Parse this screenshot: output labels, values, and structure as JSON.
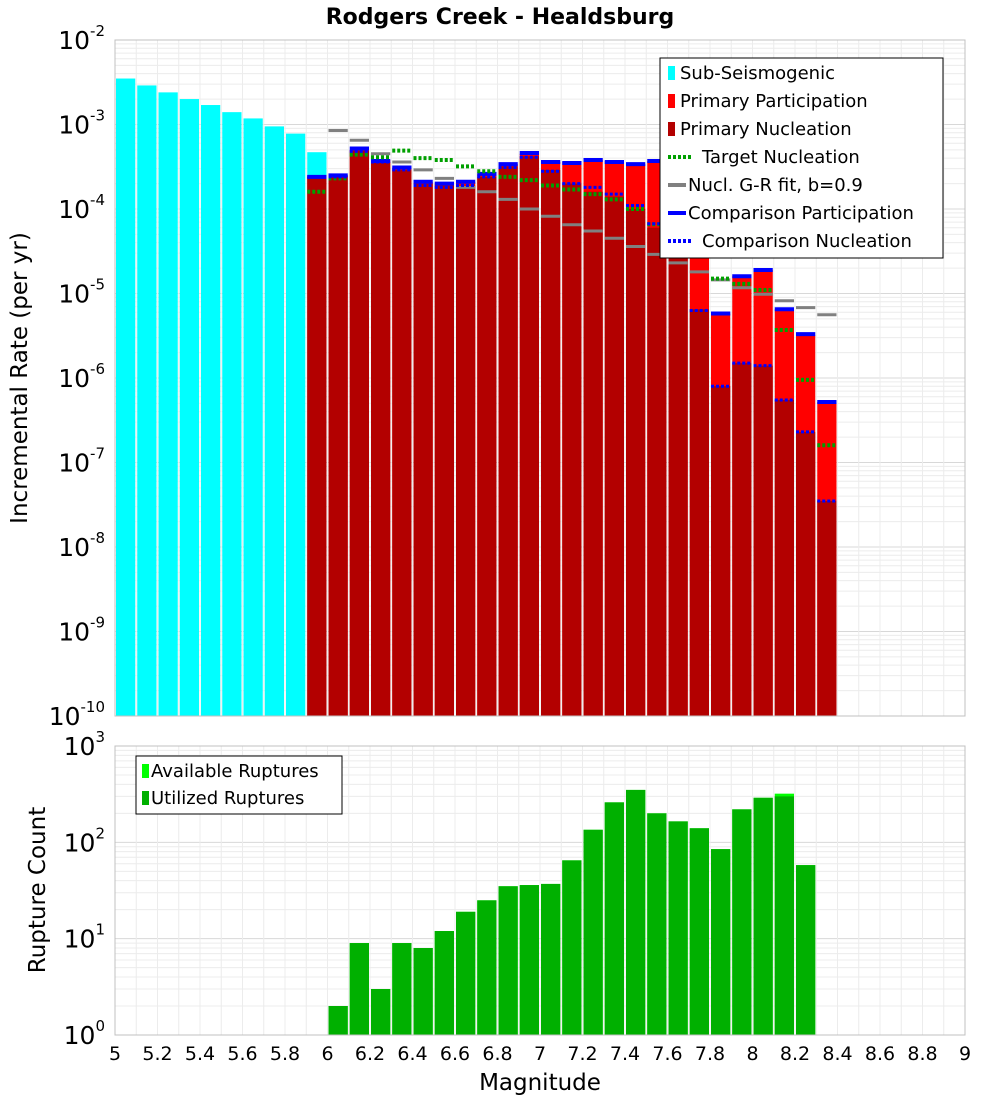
{
  "chart_data": [
    {
      "type": "bar",
      "title": "Rodgers Creek - Healdsburg",
      "xlabel": "Magnitude",
      "ylabel": "Incremental Rate (per yr)",
      "yscale": "log",
      "xlim": [
        5,
        9
      ],
      "ylim_exp": [
        -10,
        -2
      ],
      "ytick_exps": [
        "-10",
        "-9",
        "-8",
        "-7",
        "-6",
        "-5",
        "-4",
        "-3",
        "-2"
      ],
      "legend_position": "top-right",
      "legend": [
        "Sub-Seismogenic",
        "Primary Participation",
        "Primary Nucleation",
        "Target Nucleation",
        "Nucl. G-R fit, b=0.9",
        "Comparison Participation",
        "Comparison Nucleation"
      ],
      "colors": {
        "sub": "#00ffff",
        "part": "#ff0000",
        "nucl": "#b30000",
        "target": "#00a000",
        "gr": "#808080",
        "comp_part": "#0000ff",
        "comp_nucl": "#0000ff"
      },
      "sub_seismogenic": {
        "x": [
          5.0,
          5.1,
          5.2,
          5.3,
          5.4,
          5.5,
          5.6,
          5.7,
          5.8,
          5.9
        ],
        "values": [
          0.0035,
          0.0029,
          0.0024,
          0.002,
          0.0017,
          0.0014,
          0.00118,
          0.00095,
          0.00078,
          0.00047
        ]
      },
      "magnitudes": [
        5.95,
        6.05,
        6.15,
        6.25,
        6.35,
        6.45,
        6.55,
        6.65,
        6.75,
        6.85,
        6.95,
        7.05,
        7.15,
        7.25,
        7.35,
        7.45,
        7.55,
        7.65,
        7.75,
        7.85,
        7.95,
        8.05,
        8.15,
        8.25,
        8.35
      ],
      "primary_participation": [
        0.00024,
        0.00025,
        0.0005,
        0.00038,
        0.00031,
        0.00021,
        0.0002,
        0.00021,
        0.00026,
        0.00034,
        0.00045,
        0.00036,
        0.00036,
        0.00038,
        0.00037,
        0.00034,
        0.00037,
        0.00026,
        2.8e-05,
        5.8e-06,
        1.6e-05,
        1.9e-05,
        6.5e-06,
        3.2e-06,
        5.2e-07
      ],
      "primary_nucleation": [
        0.00024,
        0.00025,
        0.00049,
        0.00036,
        0.00029,
        0.0002,
        0.00019,
        0.00019,
        0.00024,
        0.00032,
        0.00042,
        0.00029,
        0.0002,
        0.00016,
        0.00014,
        0.0001,
        6e-05,
        3.2e-05,
        6.5e-06,
        8e-07,
        1.5e-06,
        1.4e-06,
        5.5e-07,
        2.3e-07,
        3.5e-08
      ],
      "target_nucleation": [
        0.00016,
        0.00023,
        0.00044,
        0.00041,
        0.00049,
        0.0004,
        0.00038,
        0.00032,
        0.00028,
        0.00024,
        0.00022,
        0.00019,
        0.00017,
        0.00015,
        0.00013,
        0.0001,
        6.6e-05,
        4.8e-05,
        3.7e-05,
        1.5e-05,
        1.3e-05,
        1.1e-05,
        3.7e-06,
        9.5e-07,
        1.6e-07
      ],
      "gr_fit_x": [
        6.05,
        6.15,
        6.25,
        6.35,
        6.45,
        6.55,
        6.65,
        6.75,
        6.85,
        6.95,
        7.05,
        7.15,
        7.25,
        7.35,
        7.45,
        7.55,
        7.65,
        7.75,
        7.85,
        7.95,
        8.05,
        8.15,
        8.25,
        8.35
      ],
      "gr_fit": [
        0.00085,
        0.00065,
        0.00045,
        0.00036,
        0.00029,
        0.00023,
        0.00018,
        0.00016,
        0.00013,
        0.0001,
        8.2e-05,
        6.5e-05,
        5.5e-05,
        4.5e-05,
        3.6e-05,
        2.9e-05,
        2.3e-05,
        1.8e-05,
        1.45e-05,
        1.17e-05,
        9.8e-06,
        8.2e-06,
        6.8e-06,
        5.6e-06
      ],
      "comparison_participation": [
        0.00024,
        0.00025,
        0.00052,
        0.00037,
        0.00031,
        0.00021,
        0.0002,
        0.00021,
        0.00026,
        0.00034,
        0.00046,
        0.00036,
        0.00035,
        0.00038,
        0.00036,
        0.00034,
        0.00037,
        0.00026,
        2.8e-05,
        5.8e-06,
        1.6e-05,
        1.9e-05,
        6.5e-06,
        3.3e-06,
        5.2e-07
      ],
      "comparison_nucleation": [
        0.00024,
        0.00024,
        0.00048,
        0.00036,
        0.00029,
        0.00019,
        0.00018,
        0.00019,
        0.00024,
        0.00031,
        0.00041,
        0.00028,
        0.0002,
        0.00018,
        0.00015,
        0.00011,
        6.7e-05,
        4.5e-05,
        6.3e-06,
        8e-07,
        1.5e-06,
        1.4e-06,
        5.5e-07,
        2.3e-07,
        3.5e-08
      ]
    },
    {
      "type": "bar",
      "xlabel": "Magnitude",
      "ylabel": "Rupture Count",
      "yscale": "log",
      "xlim": [
        5,
        9
      ],
      "ylim_exp": [
        0,
        3
      ],
      "ytick_exps": [
        "0",
        "1",
        "2",
        "3"
      ],
      "xticks": [
        "5",
        "5.2",
        "5.4",
        "5.6",
        "5.8",
        "6",
        "6.2",
        "6.4",
        "6.6",
        "6.8",
        "7",
        "7.2",
        "7.4",
        "7.6",
        "7.8",
        "8",
        "8.2",
        "8.4",
        "8.6",
        "8.8",
        "9"
      ],
      "legend_position": "top-left",
      "legend": [
        "Available Ruptures",
        "Utilized Ruptures"
      ],
      "colors": {
        "available": "#00ff00",
        "utilized": "#00b000"
      },
      "magnitudes": [
        6.05,
        6.15,
        6.25,
        6.35,
        6.45,
        6.55,
        6.65,
        6.75,
        6.85,
        6.95,
        7.05,
        7.15,
        7.25,
        7.35,
        7.45,
        7.55,
        7.65,
        7.75,
        7.85,
        7.95,
        8.05,
        8.15,
        8.25
      ],
      "available": [
        2,
        9,
        3,
        9,
        8,
        12,
        19,
        25,
        35,
        36,
        37,
        65,
        135,
        260,
        350,
        200,
        165,
        140,
        85,
        220,
        290,
        320,
        58
      ],
      "utilized": [
        2,
        9,
        3,
        9,
        8,
        12,
        19,
        25,
        35,
        36,
        37,
        65,
        135,
        260,
        350,
        200,
        165,
        140,
        85,
        220,
        290,
        300,
        58
      ]
    }
  ]
}
